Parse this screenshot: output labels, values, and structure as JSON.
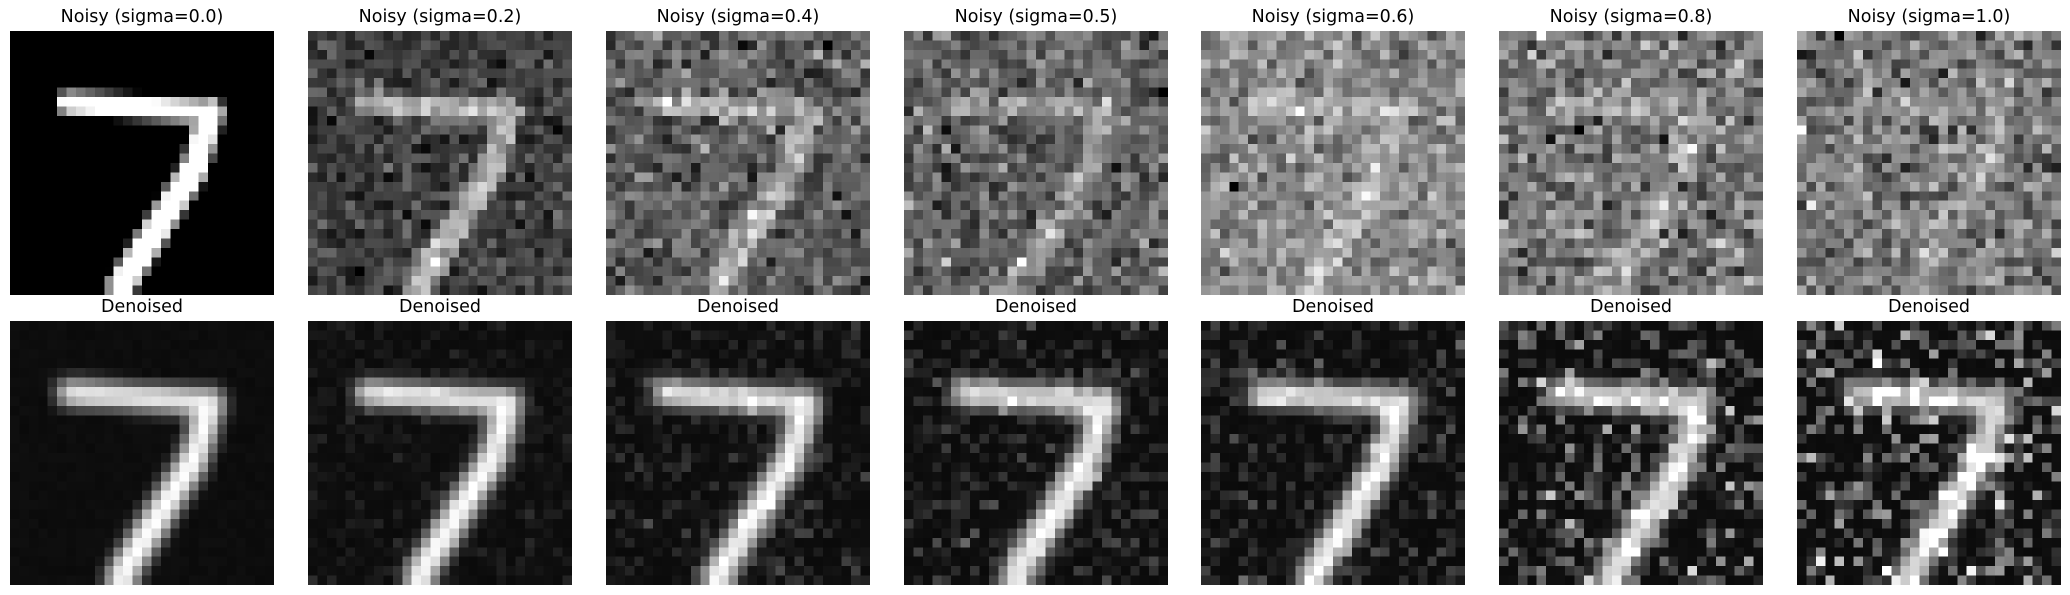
{
  "digit": "7",
  "colormap": "gray",
  "image_resolution": 28,
  "rows": {
    "noisy": [
      {
        "title": "Noisy (sigma=0.0)",
        "sigma": 0.0
      },
      {
        "title": "Noisy (sigma=0.2)",
        "sigma": 0.2
      },
      {
        "title": "Noisy (sigma=0.4)",
        "sigma": 0.4
      },
      {
        "title": "Noisy (sigma=0.5)",
        "sigma": 0.5
      },
      {
        "title": "Noisy (sigma=0.6)",
        "sigma": 0.6
      },
      {
        "title": "Noisy (sigma=0.8)",
        "sigma": 0.8
      },
      {
        "title": "Noisy (sigma=1.0)",
        "sigma": 1.0
      }
    ],
    "denoised": [
      {
        "title": "Denoised",
        "sigma": 0.0
      },
      {
        "title": "Denoised",
        "sigma": 0.2
      },
      {
        "title": "Denoised",
        "sigma": 0.4
      },
      {
        "title": "Denoised",
        "sigma": 0.5
      },
      {
        "title": "Denoised",
        "sigma": 0.6
      },
      {
        "title": "Denoised",
        "sigma": 0.8
      },
      {
        "title": "Denoised",
        "sigma": 1.0
      }
    ]
  }
}
